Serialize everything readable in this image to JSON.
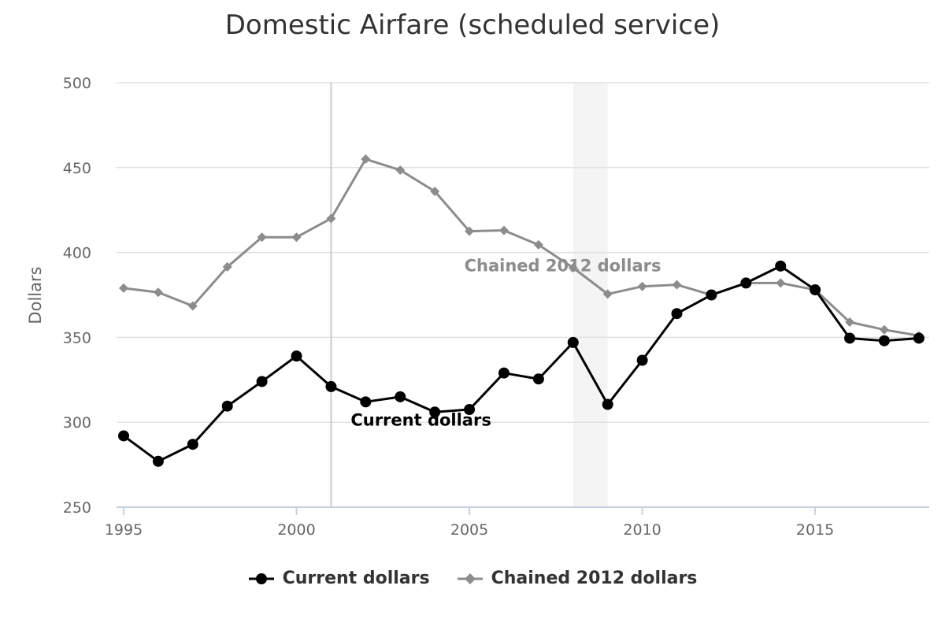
{
  "chart_data": {
    "type": "line",
    "title": "Domestic Airfare (scheduled service)",
    "xlabel": "",
    "ylabel": "Dollars",
    "x": [
      1995,
      1996,
      1997,
      1998,
      1999,
      2000,
      2001,
      2002,
      2003,
      2004,
      2005,
      2006,
      2007,
      2008,
      2009,
      2010,
      2011,
      2012,
      2013,
      2014,
      2015,
      2016,
      2017,
      2018
    ],
    "xlim": [
      1995,
      2018.3
    ],
    "ylim": [
      250,
      500
    ],
    "xticks": [
      1995,
      2000,
      2005,
      2010,
      2015
    ],
    "yticks": [
      250,
      300,
      350,
      400,
      450,
      500
    ],
    "xtick_labels": [
      "1995",
      "2000",
      "2005",
      "2010",
      "2015"
    ],
    "ytick_labels": [
      "250",
      "300",
      "350",
      "400",
      "450",
      "500"
    ],
    "grid": true,
    "legend_position": "bottom",
    "series": [
      {
        "name": "Current dollars",
        "color": "#000000",
        "marker": "circle",
        "values": [
          292,
          277,
          287,
          309.5,
          324,
          339,
          321,
          312,
          315,
          306,
          307.5,
          329,
          325.5,
          347,
          310.5,
          336.5,
          364,
          375,
          382,
          392,
          378,
          349.5,
          348,
          349.5
        ]
      },
      {
        "name": "Chained 2012 dollars",
        "color": "#8c8c8c",
        "marker": "diamond",
        "values": [
          379,
          376.5,
          368.5,
          391.5,
          409,
          409,
          420,
          455,
          448.5,
          436,
          412.5,
          413,
          404.5,
          391,
          375.5,
          380,
          381,
          375,
          382,
          382,
          378,
          359,
          354.5,
          351
        ]
      }
    ],
    "annotations": [
      {
        "text": "Chained 2012 dollars",
        "x": 2007.7,
        "y": 389,
        "color": "#8c8c8c"
      },
      {
        "text": "Current dollars",
        "x": 2003.6,
        "y": 298,
        "color": "#000000"
      }
    ],
    "reference_line_x": 2001,
    "shaded_band_x": [
      2008,
      2009
    ]
  }
}
